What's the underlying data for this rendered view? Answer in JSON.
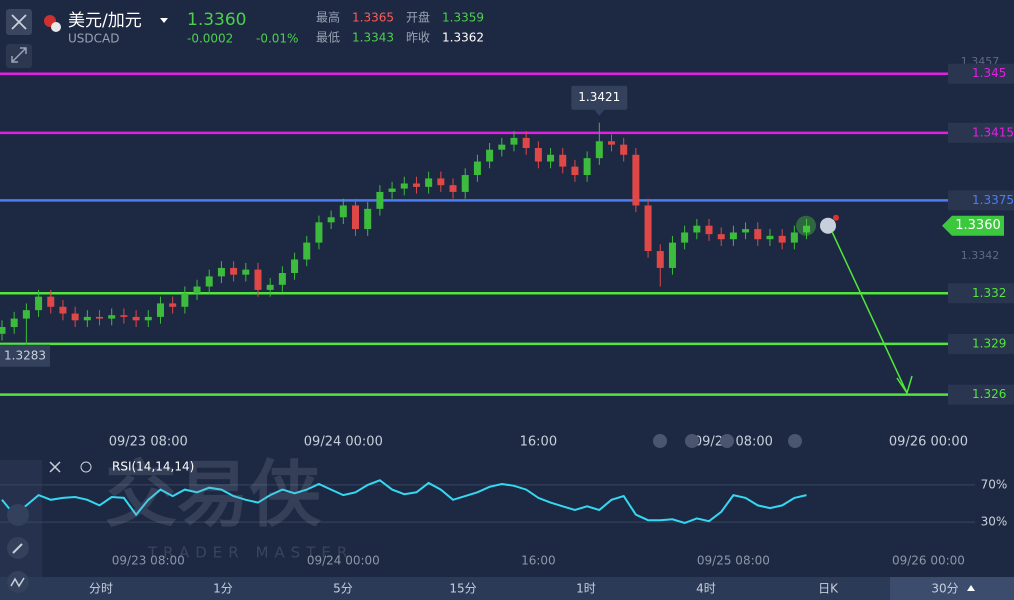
{
  "header": {
    "symbol": "美元/加元",
    "code": "USDCAD",
    "change": "-0.0002",
    "change_pct": "-0.01%",
    "stats": [
      {
        "label": "最高",
        "value": "1.3365"
      },
      {
        "label": "开盘",
        "value": "1.3359"
      },
      {
        "label": "最低",
        "value": "1.3343"
      },
      {
        "label": "昨收",
        "value": "1.3362"
      }
    ]
  },
  "watermark": {
    "logo": "交易侠",
    "text": "TRADER MASTER"
  },
  "chart_data": [
    {
      "type": "candlestick",
      "categories": [
        null,
        null,
        null,
        null,
        null,
        null,
        null,
        null,
        null,
        null,
        null,
        null,
        "09/23 08:00",
        null,
        null,
        null,
        null,
        null,
        null,
        null,
        null,
        null,
        null,
        null,
        null,
        null,
        null,
        null,
        "09/24 00:00",
        null,
        null,
        null,
        null,
        null,
        null,
        null,
        null,
        null,
        null,
        null,
        null,
        null,
        null,
        null,
        "16:00",
        null,
        null,
        null,
        null,
        null,
        null,
        null,
        null,
        null,
        null,
        null,
        null,
        null,
        null,
        null,
        "09/25 08:00",
        null,
        null,
        null,
        null,
        null,
        null,
        null,
        null,
        null,
        null,
        null,
        null,
        null,
        null,
        null,
        "09/26 00:00",
        null
      ],
      "open": [
        1.3296,
        1.33,
        1.3305,
        1.331,
        1.3318,
        1.3312,
        1.3308,
        1.3304,
        1.3306,
        1.3305,
        1.3307,
        1.3306,
        1.3304,
        1.3306,
        1.3314,
        1.3312,
        1.332,
        1.3324,
        1.333,
        1.3335,
        1.3331,
        1.3334,
        1.3322,
        1.3325,
        1.3332,
        1.334,
        1.335,
        1.3362,
        1.3365,
        1.3372,
        1.3358,
        1.337,
        1.338,
        1.3382,
        1.3385,
        1.3383,
        1.3388,
        1.3384,
        1.338,
        1.339,
        1.3398,
        1.3405,
        1.3408,
        1.3412,
        1.3406,
        1.3398,
        1.3402,
        1.3395,
        1.339,
        1.34,
        1.341,
        1.3408,
        1.3402,
        1.3372,
        1.3345,
        1.3335,
        1.335,
        1.3356,
        1.336,
        1.3355,
        1.3352,
        1.3356,
        1.3358,
        1.3352,
        1.3354,
        1.335,
        1.3356,
        null,
        null,
        null,
        null,
        null,
        null,
        null,
        null,
        null,
        null,
        null
      ],
      "high": [
        1.3304,
        1.3309,
        1.3314,
        1.3322,
        1.3322,
        1.3316,
        1.3312,
        1.331,
        1.331,
        1.3311,
        1.3311,
        1.331,
        1.331,
        1.3318,
        1.3318,
        1.3324,
        1.3328,
        1.3334,
        1.3339,
        1.3339,
        1.3338,
        1.3338,
        1.3329,
        1.3336,
        1.3344,
        1.3354,
        1.3366,
        1.3369,
        1.3376,
        1.3376,
        1.3374,
        1.3384,
        1.3386,
        1.3389,
        1.3389,
        1.3392,
        1.3392,
        1.3388,
        1.3394,
        1.3402,
        1.3409,
        1.3412,
        1.3416,
        1.3416,
        1.341,
        1.3406,
        1.3406,
        1.3399,
        1.3404,
        1.3421,
        1.3414,
        1.3412,
        1.3406,
        1.3376,
        1.3349,
        1.3354,
        1.336,
        1.3364,
        1.3364,
        1.3359,
        1.336,
        1.3362,
        1.3362,
        1.3358,
        1.3358,
        1.336,
        1.3364,
        null,
        null,
        null,
        null,
        null,
        null,
        null,
        null,
        null,
        null,
        null
      ],
      "low": [
        1.3292,
        1.3296,
        1.3283,
        1.3306,
        1.3308,
        1.3304,
        1.33,
        1.33,
        1.3301,
        1.3301,
        1.3302,
        1.33,
        1.33,
        1.3302,
        1.3308,
        1.3308,
        1.3316,
        1.332,
        1.3326,
        1.3327,
        1.3327,
        1.3318,
        1.3318,
        1.3321,
        1.3328,
        1.3336,
        1.3346,
        1.3358,
        1.3361,
        1.3354,
        1.3354,
        1.3366,
        1.3376,
        1.3378,
        1.3379,
        1.3379,
        1.338,
        1.3376,
        1.3376,
        1.3386,
        1.3394,
        1.3401,
        1.3404,
        1.3402,
        1.3394,
        1.3394,
        1.3391,
        1.3386,
        1.3386,
        1.3396,
        1.3404,
        1.3398,
        1.3368,
        1.3341,
        1.3324,
        1.3331,
        1.3346,
        1.3352,
        1.3351,
        1.3348,
        1.3348,
        1.3352,
        1.3348,
        1.3348,
        1.3346,
        1.3346,
        1.3352,
        null,
        null,
        null,
        null,
        null,
        null,
        null,
        null,
        null,
        null,
        null
      ],
      "close": [
        1.33,
        1.3305,
        1.331,
        1.3318,
        1.3312,
        1.3308,
        1.3304,
        1.3306,
        1.3305,
        1.3307,
        1.3306,
        1.3304,
        1.3306,
        1.3314,
        1.3312,
        1.332,
        1.3324,
        1.333,
        1.3335,
        1.3331,
        1.3334,
        1.3322,
        1.3325,
        1.3332,
        1.334,
        1.335,
        1.3362,
        1.3365,
        1.3372,
        1.3358,
        1.337,
        1.338,
        1.3382,
        1.3385,
        1.3383,
        1.3388,
        1.3384,
        1.338,
        1.339,
        1.3398,
        1.3405,
        1.3408,
        1.3412,
        1.3406,
        1.3398,
        1.3402,
        1.3395,
        1.339,
        1.34,
        1.341,
        1.3408,
        1.3402,
        1.3372,
        1.3345,
        1.3335,
        1.335,
        1.3356,
        1.336,
        1.3355,
        1.3352,
        1.3356,
        1.3358,
        1.3352,
        1.3354,
        1.335,
        1.3356,
        1.336,
        null,
        null,
        null,
        null,
        null,
        null,
        null,
        null,
        null,
        null,
        null
      ],
      "up_color": "#3dbb3d",
      "down_color": "#e04848",
      "ylim": [
        1.3242,
        1.3467
      ],
      "yticks": [
        1.3457,
        1.3342
      ],
      "levels": [
        {
          "value": 1.345,
          "color": "#e41fe4"
        },
        {
          "value": 1.3415,
          "color": "#e41fe4"
        },
        {
          "value": 1.3375,
          "color": "#4b7ef2"
        },
        {
          "value": 1.332,
          "color": "#52e63c"
        },
        {
          "value": 1.329,
          "color": "#52e63c"
        },
        {
          "value": 1.326,
          "color": "#52e63c"
        }
      ],
      "current": {
        "value": 1.336,
        "label": "1.3360"
      }
    },
    {
      "type": "line",
      "title": "RSI(14,14,14)",
      "categories": [
        null,
        null,
        null,
        null,
        null,
        null,
        null,
        null,
        null,
        null,
        null,
        null,
        "09/23 08:00",
        null,
        null,
        null,
        null,
        null,
        null,
        null,
        null,
        null,
        null,
        null,
        null,
        null,
        null,
        null,
        "09/24 00:00",
        null,
        null,
        null,
        null,
        null,
        null,
        null,
        null,
        null,
        null,
        null,
        null,
        null,
        null,
        null,
        "16:00",
        null,
        null,
        null,
        null,
        null,
        null,
        null,
        null,
        null,
        null,
        null,
        null,
        null,
        null,
        null,
        "09/25 08:00",
        null,
        null,
        null,
        null,
        null,
        null,
        null,
        null,
        null,
        null,
        null,
        null,
        null,
        null,
        null,
        "09/26 00:00",
        null
      ],
      "values": [
        54,
        38,
        48,
        59,
        54,
        56,
        57,
        54,
        48,
        57,
        56,
        38,
        54,
        65,
        58,
        65,
        62,
        67,
        65,
        58,
        54,
        51,
        59,
        65,
        61,
        65,
        71,
        65,
        59,
        62,
        70,
        75,
        65,
        60,
        62,
        72,
        65,
        54,
        58,
        62,
        68,
        71,
        69,
        65,
        56,
        51,
        47,
        43,
        47,
        43,
        54,
        58,
        38,
        32,
        32,
        33,
        29,
        34,
        31,
        41,
        59,
        56,
        48,
        45,
        48,
        56,
        59,
        null,
        null,
        null,
        null,
        null,
        null,
        null,
        null,
        null,
        null,
        null
      ],
      "color": "#35d8f2",
      "ylim": [
        0,
        100
      ],
      "yticks": [
        {
          "value": 70,
          "label": "70%"
        },
        {
          "value": 30,
          "label": "30%"
        }
      ]
    }
  ],
  "toolbar": {
    "tabs": [
      "分时",
      "1分",
      "5分",
      "15分",
      "1时",
      "4时",
      "日K",
      "30分"
    ]
  }
}
